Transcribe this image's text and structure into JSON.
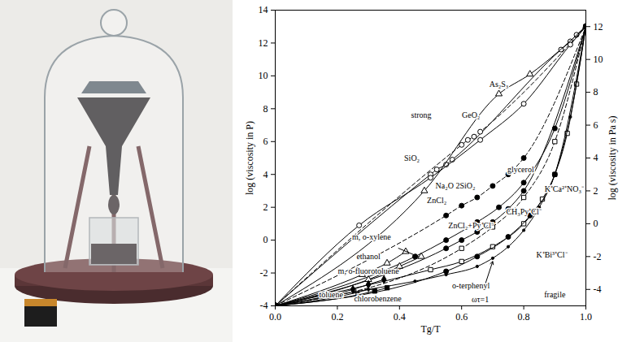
{
  "chart_data": {
    "type": "line",
    "color": "#000000",
    "x_label": "Tg/T",
    "y_label": "log (viscosity in P)",
    "y2_label": "log (viscosity in Pa s)",
    "xlim": [
      0,
      1
    ],
    "xticks": [
      {
        "value": 0,
        "label": "0.0"
      },
      {
        "value": 0.2,
        "label": "0.2"
      },
      {
        "value": 0.4,
        "label": "0.4"
      },
      {
        "value": 0.6,
        "label": "0.6"
      },
      {
        "value": 0.8,
        "label": "0.8"
      },
      {
        "value": 1,
        "label": "1.0"
      }
    ],
    "ylim": [
      -4,
      14
    ],
    "yticks": [
      -4,
      -2,
      0,
      2,
      4,
      6,
      8,
      10,
      12,
      14
    ],
    "y2lim": [
      -5,
      13
    ],
    "y2ticks": [
      -4,
      -2,
      0,
      2,
      4,
      6,
      8,
      10,
      12
    ],
    "series": [
      {
        "name": "SiO₂",
        "marker": "open circle",
        "line_style": "solid",
        "x": [
          0,
          0.5,
          0.52,
          0.55,
          0.57,
          0.92,
          0.95,
          0.97,
          1
        ],
        "values": [
          -4,
          4.0,
          4.3,
          4.6,
          4.9,
          11.6,
          12.1,
          12.5,
          13
        ]
      },
      {
        "name": "GeO₂",
        "marker": "open circle",
        "line_style": "dashed",
        "x": [
          0,
          0.6,
          0.62,
          0.64,
          0.66,
          1
        ],
        "values": [
          -4,
          5.8,
          6.1,
          6.3,
          6.6,
          13
        ]
      },
      {
        "name": "As₂S₃",
        "marker": "open triangle",
        "line_style": "solid",
        "x": [
          0,
          0.48,
          0.72,
          0.82,
          1
        ],
        "values": [
          -4,
          3.0,
          8.9,
          10.1,
          13
        ]
      },
      {
        "name": "Na₂O 2SiO₂",
        "marker": "open circle",
        "line_style": "solid",
        "x": [
          0,
          0.27,
          0.5,
          0.66,
          0.8,
          0.95,
          1
        ],
        "values": [
          -4,
          0.9,
          3.8,
          6.1,
          8.3,
          11.9,
          13
        ]
      },
      {
        "name": "ZnCl₂",
        "marker": "filled circle",
        "line_style": "dashed",
        "x": [
          0,
          0.55,
          0.6,
          0.65,
          0.7,
          0.75,
          0.8,
          1
        ],
        "values": [
          -4,
          1.5,
          2.1,
          2.6,
          3.3,
          4.0,
          5.0,
          13
        ]
      },
      {
        "name": "glycerol",
        "marker": "filled circle",
        "line_style": "solid",
        "x": [
          0,
          0.45,
          0.55,
          0.65,
          0.72,
          0.8,
          0.9,
          1
        ],
        "values": [
          -4,
          -1.0,
          0.0,
          1.1,
          2.0,
          3.5,
          6.8,
          13
        ]
      },
      {
        "name": "CH₃Py⁺Cl⁻",
        "marker": "open square",
        "line_style": "dashed",
        "x": [
          0,
          0.6,
          0.7,
          0.8,
          0.9,
          1
        ],
        "values": [
          -4,
          -0.5,
          0.8,
          2.6,
          6.0,
          13
        ]
      },
      {
        "name": "ZnCl₂+Py⁺Cl⁻",
        "marker": "filled circle",
        "line_style": "solid",
        "x": [
          0,
          0.55,
          0.6,
          0.65,
          0.7,
          0.75,
          0.8,
          1
        ],
        "values": [
          -4,
          -0.5,
          0.0,
          0.5,
          1.1,
          1.9,
          3.0,
          13
        ]
      },
      {
        "name": "K⁺Ca²⁺NO₃⁻",
        "marker": "open square",
        "line_style": "solid",
        "x": [
          0,
          0.5,
          0.6,
          0.7,
          0.8,
          0.86,
          0.9,
          0.94,
          0.97,
          1
        ],
        "values": [
          -4,
          -1.8,
          -1.3,
          -0.4,
          1.0,
          2.5,
          4.0,
          6.5,
          9.5,
          13
        ]
      },
      {
        "name": "K⁺Bi³⁺Cl⁻",
        "marker": "filled circle",
        "line_style": "solid",
        "x": [
          0,
          0.55,
          0.65,
          0.75,
          0.82,
          0.9,
          1
        ],
        "values": [
          -4,
          -1.9,
          -1.0,
          0.2,
          1.5,
          4.0,
          13
        ]
      },
      {
        "name": "o-terphenyl",
        "marker": "dot",
        "line_style": "solid",
        "x": [
          0,
          0.3,
          0.45,
          0.55,
          0.65,
          0.7,
          0.75,
          0.8,
          0.85,
          0.9,
          0.95,
          1
        ],
        "values": [
          -4,
          -3.0,
          -2.5,
          -2.1,
          -1.6,
          -1.1,
          -0.4,
          0.6,
          2.0,
          4.0,
          7.5,
          13
        ]
      },
      {
        "name": "m, o-xylene",
        "marker": "open triangle",
        "line_style": "solid",
        "x": [
          0,
          0.3,
          0.4,
          0.47
        ],
        "values": [
          -4,
          -2.4,
          -1.6,
          -1.0
        ]
      },
      {
        "name": "ethanol",
        "marker": "open triangle",
        "line_style": "solid",
        "x": [
          0,
          0.28,
          0.36,
          0.42
        ],
        "values": [
          -4,
          -2.1,
          -1.4,
          -0.7
        ]
      },
      {
        "name": "m, o-fluorotoluene",
        "marker": "filled diamond",
        "line_style": "solid",
        "x": [
          0,
          0.25,
          0.3,
          0.35
        ],
        "values": [
          -4,
          -3.0,
          -2.7,
          -2.4
        ]
      },
      {
        "name": "toluene",
        "marker": "plus",
        "line_style": "solid",
        "x": [
          0,
          0.26,
          0.3
        ],
        "values": [
          -4,
          -3.2,
          -3.0
        ]
      },
      {
        "name": "chlorobenzene",
        "marker": "filled square",
        "line_style": "solid",
        "x": [
          0,
          0.32,
          0.36
        ],
        "values": [
          -4,
          -3.1,
          -2.9
        ]
      }
    ],
    "annotations": [
      {
        "text": "strong",
        "x": 0.47,
        "y": 7.6
      },
      {
        "text": "fragile",
        "x": 0.9,
        "y": -3.3
      },
      {
        "text": "SiO₂",
        "x": 0.44,
        "y": 5.0
      },
      {
        "text": "GeO₂",
        "x": 0.63,
        "y": 7.6
      },
      {
        "text": "As₂S₃",
        "x": 0.72,
        "y": 9.5
      },
      {
        "text": "Na₂O 2SiO₂",
        "x": 0.58,
        "y": 3.3
      },
      {
        "text": "ZnCl₂",
        "x": 0.52,
        "y": 2.4
      },
      {
        "text": "glycerol",
        "x": 0.79,
        "y": 4.3
      },
      {
        "text": "CH₃Py⁺Cl⁻",
        "x": 0.8,
        "y": 1.7
      },
      {
        "text": "ZnCl₂+Py⁺Cl⁻",
        "x": 0.63,
        "y": 0.9
      },
      {
        "text": "K⁺Ca²⁺NO₃⁻",
        "x": 0.93,
        "y": 3.1
      },
      {
        "text": "K⁺Bi³⁺Cl⁻",
        "x": 0.89,
        "y": -0.9
      },
      {
        "text": "o-terphenyl",
        "x": 0.63,
        "y": -2.8
      },
      {
        "text": "ωτ=1",
        "x": 0.66,
        "y": -3.6,
        "arrow": [
          0.7,
          -1.3
        ]
      },
      {
        "text": "m, o-xylene",
        "x": 0.31,
        "y": 0.2,
        "arrow": [
          0.46,
          -1.0
        ]
      },
      {
        "text": "ethanol",
        "x": 0.3,
        "y": -1.0
      },
      {
        "text": "m, o-fluorotoluene",
        "x": 0.3,
        "y": -1.9
      },
      {
        "text": "toluene",
        "x": 0.18,
        "y": -3.3
      },
      {
        "text": "chlorobenzene",
        "x": 0.33,
        "y": -3.55
      }
    ]
  }
}
